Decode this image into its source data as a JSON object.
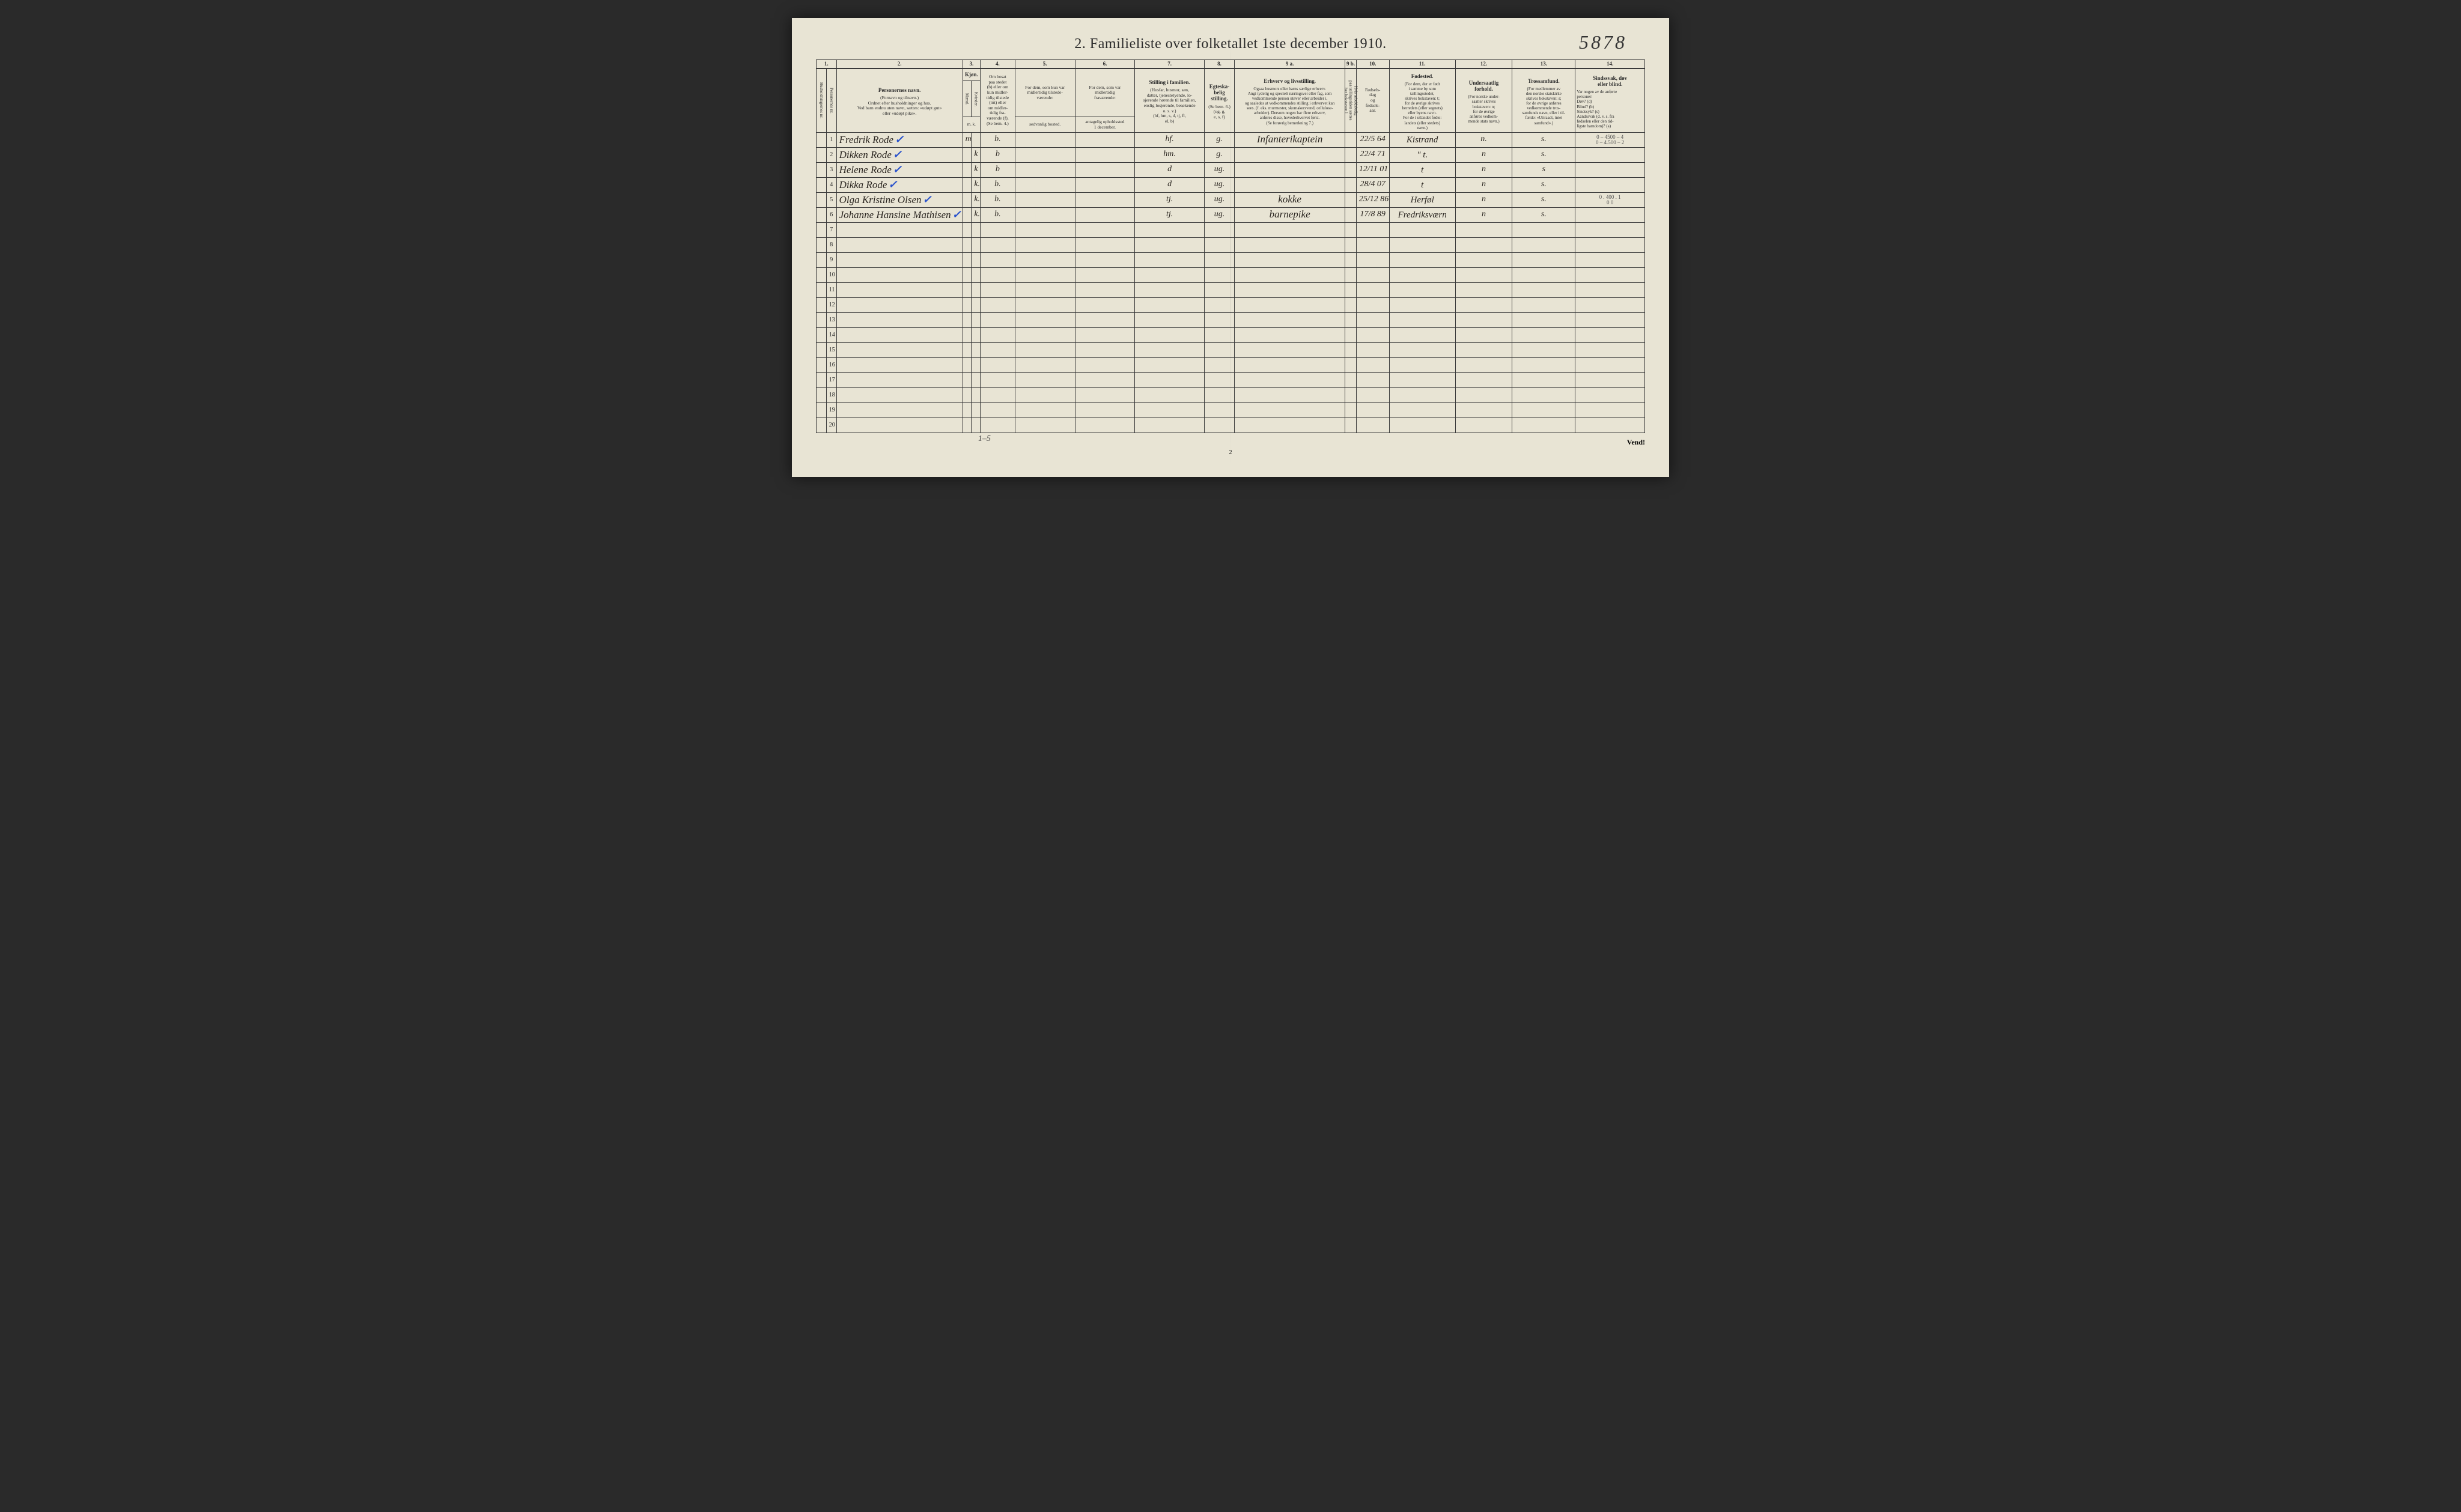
{
  "title": "2.  Familieliste over folketallet 1ste december 1910.",
  "handwritten_page_number": "5878",
  "page_num_bottom": "2",
  "vend_label": "Vend!",
  "bottom_margin_note": "1–5",
  "columns": {
    "c1": "1.",
    "c2": "2.",
    "c3": "3.",
    "c4": "4.",
    "c5": "5.",
    "c6": "6.",
    "c7": "7.",
    "c8": "8.",
    "c9a": "9 a.",
    "c9b": "9 b.",
    "c10": "10.",
    "c11": "11.",
    "c12": "12.",
    "c13": "13.",
    "c14": "14."
  },
  "headers": {
    "h1_vert1": "Husholdningernes nr.",
    "h1_vert2": "Personernes nr.",
    "h2_main": "Personernes navn.",
    "h2_sub": "(Fornavn og tilnavn.)\nOrdnet efter husholdninger og hus.\nVed barn endnu uten navn, sættes: «udøpt gut»\neller «udøpt pike».",
    "h3_main": "Kjøn.",
    "h3_m": "Mænd.",
    "h3_k": "Kvinder.",
    "h3_mk": "m. k.",
    "h4_main": "Om bosat\npaa stedet\n(b) eller om\nkun midler-\ntidig tilstede\n(mt) eller\nom midler-\ntidig fra-\nværende (f).\n(Se bem. 4.)",
    "h5_main": "For dem, som kun var\nmidlertidig tilstede-\nværende:",
    "h5_sub": "sedvanlig bosted.",
    "h6_main": "For dem, som var\nmidlertidig\nfraværende:",
    "h6_sub": "antagelig opholdssted\n1 december.",
    "h7_main": "Stilling i familien.",
    "h7_sub": "(Husfar, husmor, søn,\ndatter, tjenestetyende, lo-\nsjerende hørende til familien,\nenslig losjerende, besøkende\no. s. v.)\n(hf, hm, s, d, tj, fl,\nel, b)",
    "h8_main": "Egteska-\nbelig\nstilling.",
    "h8_sub": "(Se bem. 6.)\n(ug, g,\ne, s, f)",
    "h9a_main": "Erhverv og livsstilling.",
    "h9a_sub": "Ogsaa husmors eller barns særlige erhverv.\nAngi tydelig og specielt næringsvei eller fag, som\nvedkommende person utøver eller arbeider i,\nog saaledes at vedkommendes stilling i erhvervet kan\nsees. (f. eks. murmester, skomakersvend, cellulose-\narbeider). Dersom nogen har flere erhverv,\nanføres disse, hovederhvervet først.\n(Se forøvrig bemerkning 7.)",
    "h9b_vert": "Hvis arbeidsledig\npaa tællingstiden sættes\nher bokstaven l",
    "h10_main": "Fødsels-\ndag\nog\nfødsels-\naar.",
    "h11_main": "Fødested.",
    "h11_sub": "(For dem, der er født\ni samme by som\ntællingsstedet,\nskrives bokstaven: t;\nfor de øvrige skrives\nherredets (eller sognets)\neller byens navn.\nFor de i utlandet fødte:\nlandets (eller stedets)\nnavn.)",
    "h12_main": "Undersaatlig\nforhold.",
    "h12_sub": "(For norske under-\nsaatter skrives\nbokstaven: n;\nfor de øvrige\nanføres vedkom-\nmende stats navn.)",
    "h13_main": "Trossamfund.",
    "h13_sub": "(For medlemmer av\nden norske statskirke\nskrives bokstaven: s;\nfor de øvrige anføres\nvedkommende tros-\nsamfunds navn, eller i til-\nfælde: «Uttraadt, intet\nsamfund».)",
    "h14_main": "Sindssvak, døv\neller blind.",
    "h14_sub": "Var nogen av de anførte\npersoner:\nDøv?        (d)\nBlind?      (b)\nSindssyk?  (s)\nAandssvak (d. v. s. fra\nfødselen eller den tid-\nligste barndom)? (a)"
  },
  "rows": [
    {
      "n": "1",
      "name": "Fredrik Rode",
      "check": true,
      "m": "m",
      "k": "",
      "b": "b.",
      "c5": "",
      "c6": "",
      "c7": "hf.",
      "c8": "g.",
      "c9a": "Infanterikaptein",
      "c10": "22/5 64",
      "c11": "Kistrand",
      "c12": "n.",
      "c13": "s.",
      "c14": "0 – 4500 – 4\n0 – 4.500 – 2"
    },
    {
      "n": "2",
      "name": "Dikken Rode",
      "check": true,
      "m": "",
      "k": "k",
      "b": "b",
      "c5": "",
      "c6": "",
      "c7": "hm.",
      "c8": "g.",
      "c9a": "",
      "c10": "22/4 71",
      "c11": "\"   t.",
      "c12": "n",
      "c13": "s.",
      "c14": ""
    },
    {
      "n": "3",
      "name": "Helene Rode",
      "check": true,
      "m": "",
      "k": "k",
      "b": "b",
      "c5": "",
      "c6": "",
      "c7": "d",
      "c8": "ug.",
      "c9a": "",
      "c10": "12/11 01",
      "c11": "t",
      "c12": "n",
      "c13": "s",
      "c14": ""
    },
    {
      "n": "4",
      "name": "Dikka Rode",
      "check": true,
      "m": "",
      "k": "k.",
      "b": "b.",
      "c5": "",
      "c6": "",
      "c7": "d",
      "c8": "ug.",
      "c9a": "",
      "c10": "28/4 07",
      "c11": "t",
      "c12": "n",
      "c13": "s.",
      "c14": ""
    },
    {
      "n": "5",
      "name": "Olga Kristine Olsen",
      "check": true,
      "m": "",
      "k": "k.",
      "b": "b.",
      "c5": "",
      "c6": "",
      "c7": "tj.",
      "c8": "ug.",
      "c9a": "kokke",
      "c10": "25/12 86",
      "c11": "Herføl",
      "c12": "n",
      "c13": "s.",
      "c14": "0 . 400 . 1\n0       0"
    },
    {
      "n": "6",
      "name": "Johanne Hansine Mathisen",
      "check": true,
      "m": "",
      "k": "k.",
      "b": "b.",
      "c5": "",
      "c6": "",
      "c7": "tj.",
      "c8": "ug.",
      "c9a": "barnepike",
      "c10": "17/8 89",
      "c11": "Fredriksværn",
      "c12": "n",
      "c13": "s.",
      "c14": ""
    }
  ],
  "empty_rows": [
    "7",
    "8",
    "9",
    "10",
    "11",
    "12",
    "13",
    "14",
    "15",
    "16",
    "17",
    "18",
    "19",
    "20"
  ],
  "colors": {
    "paper": "#e8e4d4",
    "ink": "#2a2a2a",
    "handwriting": "#2a2520",
    "check_blue": "#2952cc",
    "border": "#3a3a3a",
    "background": "#2a2a2a"
  }
}
